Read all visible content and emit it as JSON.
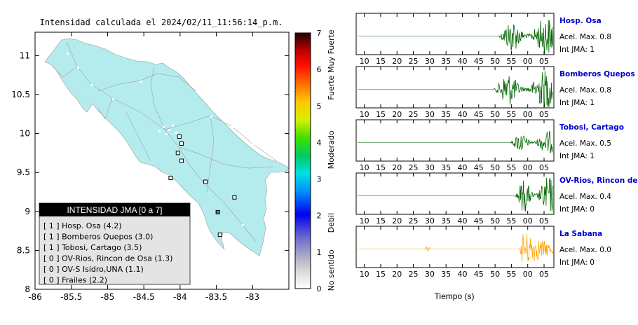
{
  "map": {
    "title": "Intensidad calculada el 2024/02/11_11:56:14_p.m.",
    "x_ticks": [
      "-86",
      "-85.5",
      "-85",
      "-84.5",
      "-84",
      "-83.5",
      "-83"
    ],
    "y_ticks": [
      "11",
      "10.5",
      "10",
      "9.5",
      "9",
      "8.5",
      "8"
    ],
    "xlim": [
      -86,
      -82.5
    ],
    "ylim": [
      8,
      11.3
    ],
    "land_color": "#b4ecee",
    "stations": [
      {
        "lon": -84.01,
        "lat": 9.96
      },
      {
        "lon": -83.98,
        "lat": 9.87
      },
      {
        "lon": -84.03,
        "lat": 9.75
      },
      {
        "lon": -83.98,
        "lat": 9.65
      },
      {
        "lon": -84.13,
        "lat": 9.43
      },
      {
        "lon": -83.65,
        "lat": 9.38
      },
      {
        "lon": -83.25,
        "lat": 9.18
      },
      {
        "lon": -83.48,
        "lat": 8.99
      },
      {
        "lon": -83.45,
        "lat": 8.7
      }
    ],
    "legend": {
      "title": "INTENSIDAD JMA [0 a 7]",
      "items": [
        "[ 1 ]  Hosp. Osa (4.2)",
        "[ 1 ]  Bomberos Quepos (3.0)",
        "[ 1 ]  Tobosi, Cartago (3.5)",
        "[ 0 ]  OV-Rios, Rincon de Osa (1.3)",
        "[ 0 ]  OV-S Isidro,UNA (1.1)",
        "[ 0 ]  Frailes (2.2)"
      ]
    }
  },
  "colorbar": {
    "ticks": [
      "0",
      "1",
      "2",
      "3",
      "4",
      "5",
      "6",
      "7"
    ],
    "labels": [
      "No sentido",
      "Debil",
      "Moderado",
      "Fuerte",
      "Muy Fuerte"
    ]
  },
  "chart_data": {
    "type": "line",
    "x_ticks": [
      "10",
      "15",
      "20",
      "25",
      "30",
      "35",
      "40",
      "45",
      "50",
      "55",
      "00",
      "05"
    ],
    "xlabel": "Tiempo (s)",
    "series": [
      {
        "name": "Hosp. Osa",
        "accel": "Acel. Max. 0.8",
        "jma": "Int JMA: 1",
        "color": "#006400",
        "onset": 51,
        "amp": 1.0
      },
      {
        "name": "Bomberos Quepos",
        "accel": "Acel. Max. 0.8",
        "jma": "Int JMA: 1",
        "color": "#006400",
        "onset": 49.5,
        "amp": 1.0
      },
      {
        "name": "Tobosi, Cartago",
        "accel": "Acel. Max. 0.5",
        "jma": "Int JMA: 1",
        "color": "#006400",
        "onset": 54.5,
        "amp": 0.6
      },
      {
        "name": "OV-Rios, Rincon de Osa",
        "accel": "Acel. Max. 0.4",
        "jma": "Int JMA: 0",
        "color": "#006400",
        "onset": 56,
        "amp": 1.0
      },
      {
        "name": "La Sabana",
        "accel": "Acel. Max. 0.0",
        "jma": "Int JMA: 0",
        "color": "#ffa500",
        "onset": 57.5,
        "amp": 1.0
      }
    ]
  }
}
